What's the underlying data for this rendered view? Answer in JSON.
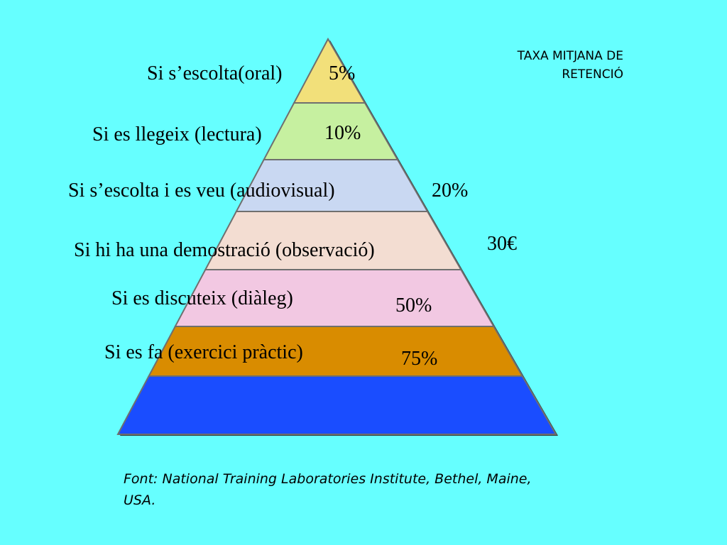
{
  "title": {
    "line1": "TAXA MITJANA DE",
    "line2": "RETENCIÓ"
  },
  "levels": [
    {
      "label": "Si s’escolta(oral)",
      "value": "5%",
      "color": "#f2e07a"
    },
    {
      "label": "Si es llegeix (lectura)",
      "value": "10%",
      "color": "#c6f0a0"
    },
    {
      "label": "Si s’escolta i es veu (audiovisual)",
      "value": "20%",
      "color": "#c9d8f2"
    },
    {
      "label": "Si hi ha una demostració (observació)",
      "value": "30€",
      "color": "#f3ddd2"
    },
    {
      "label": "Si es discuteix (diàleg)",
      "value": "50%",
      "color": "#f2c8e2"
    },
    {
      "label": "Si es fa (exercici pràctic)",
      "value": "75%",
      "color": "#d98c00"
    },
    {
      "label": "",
      "value": "",
      "color": "#1a4dff"
    }
  ],
  "source": {
    "line1": "Font: National Training Laboratories Institute, Bethel, Maine,",
    "line2": "USA."
  },
  "colors": {
    "background": "#66ffff",
    "outline": "#6f6f6f"
  }
}
